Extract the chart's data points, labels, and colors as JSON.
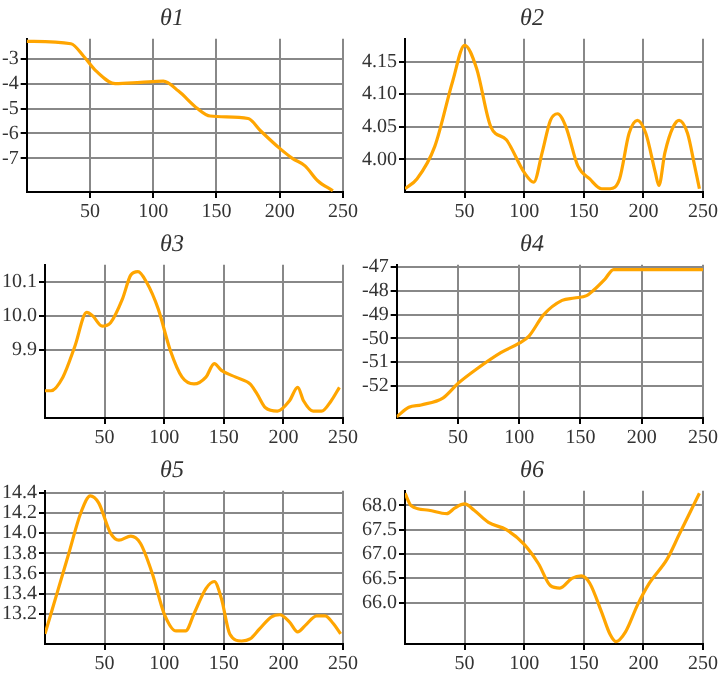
{
  "chart_data": [
    {
      "type": "line",
      "title": "θ1",
      "color": "#ffa500",
      "grid": true,
      "xlim": [
        0,
        250
      ],
      "xticks": [
        50,
        100,
        150,
        200,
        250
      ],
      "ylim": [
        -8.35,
        -2.2
      ],
      "yticks": [
        -7,
        -6,
        -5,
        -4,
        -3
      ],
      "x": [
        0,
        35,
        45,
        55,
        70,
        90,
        108,
        120,
        135,
        145,
        175,
        185,
        200,
        210,
        220,
        230,
        242
      ],
      "values": [
        -2.3,
        -2.4,
        -2.9,
        -3.5,
        -4.0,
        -3.95,
        -3.9,
        -4.3,
        -5.0,
        -5.3,
        -5.4,
        -5.9,
        -6.6,
        -7.0,
        -7.3,
        -7.9,
        -8.3
      ]
    },
    {
      "type": "line",
      "title": "θ2",
      "color": "#ffa500",
      "grid": true,
      "xlim": [
        0,
        250
      ],
      "xticks": [
        50,
        100,
        150,
        200,
        250
      ],
      "ylim": [
        3.95,
        4.185
      ],
      "yticks": [
        {
          "value": 4.0,
          "label": "4.00"
        },
        {
          "value": 4.05,
          "label": "4.05"
        },
        {
          "value": 4.1,
          "label": "4.10"
        },
        {
          "value": 4.15,
          "label": "4.15"
        }
      ],
      "x": [
        0,
        10,
        25,
        40,
        50,
        60,
        72,
        85,
        100,
        108,
        115,
        122,
        128,
        135,
        145,
        155,
        165,
        172,
        180,
        188,
        195,
        202,
        210,
        213,
        218,
        225,
        230,
        237,
        243,
        247
      ],
      "values": [
        3.955,
        3.97,
        4.02,
        4.12,
        4.175,
        4.14,
        4.05,
        4.03,
        3.98,
        3.965,
        4.01,
        4.06,
        4.07,
        4.05,
        3.99,
        3.97,
        3.955,
        3.955,
        3.97,
        4.04,
        4.06,
        4.04,
        3.98,
        3.96,
        4.01,
        4.05,
        4.06,
        4.04,
        3.99,
        3.955
      ]
    },
    {
      "type": "line",
      "title": "θ3",
      "color": "#ffa500",
      "grid": true,
      "xlim": [
        0,
        250
      ],
      "xticks": [
        50,
        100,
        150,
        200,
        250
      ],
      "ylim": [
        9.7,
        10.15
      ],
      "yticks": [
        9.9,
        {
          "value": 10.0,
          "label": "10.0"
        },
        10.1
      ],
      "x": [
        0,
        5,
        15,
        25,
        35,
        40,
        48,
        55,
        65,
        72,
        78,
        85,
        95,
        105,
        115,
        125,
        135,
        142,
        148,
        160,
        172,
        178,
        185,
        195,
        205,
        212,
        217,
        225,
        232,
        240,
        247
      ],
      "values": [
        9.78,
        9.78,
        9.82,
        9.91,
        10.01,
        10.0,
        9.97,
        9.98,
        10.05,
        10.12,
        10.13,
        10.1,
        10.02,
        9.9,
        9.82,
        9.8,
        9.82,
        9.86,
        9.84,
        9.82,
        9.8,
        9.77,
        9.73,
        9.72,
        9.75,
        9.79,
        9.75,
        9.72,
        9.72,
        9.75,
        9.79
      ]
    },
    {
      "type": "line",
      "title": "θ4",
      "color": "#ffa500",
      "grid": true,
      "xlim": [
        0,
        250
      ],
      "xticks": [
        50,
        100,
        150,
        200,
        250
      ],
      "ylim": [
        -53.35,
        -46.9
      ],
      "yticks": [
        -52,
        -51,
        -50,
        -49,
        -48,
        -47
      ],
      "x": [
        0,
        10,
        20,
        38,
        50,
        65,
        85,
        100,
        108,
        120,
        135,
        145,
        155,
        160,
        170,
        177,
        250
      ],
      "values": [
        -53.3,
        -52.9,
        -52.8,
        -52.5,
        -51.9,
        -51.3,
        -50.6,
        -50.2,
        -49.9,
        -49.0,
        -48.4,
        -48.3,
        -48.2,
        -48.0,
        -47.5,
        -47.1,
        -47.1
      ]
    },
    {
      "type": "line",
      "title": "θ5",
      "color": "#ffa500",
      "grid": true,
      "xlim": [
        0,
        250
      ],
      "xticks": [
        50,
        100,
        150,
        200,
        250
      ],
      "ylim": [
        12.9,
        14.42
      ],
      "yticks": [
        13.2,
        13.4,
        13.6,
        13.8,
        {
          "value": 14.0,
          "label": "14.0"
        },
        14.2,
        14.4
      ],
      "x": [
        0,
        10,
        20,
        30,
        38,
        45,
        55,
        62,
        72,
        80,
        90,
        100,
        110,
        118,
        125,
        135,
        142,
        148,
        155,
        165,
        172,
        180,
        190,
        197,
        205,
        212,
        218,
        228,
        235,
        242,
        248
      ],
      "values": [
        13.0,
        13.4,
        13.8,
        14.2,
        14.37,
        14.3,
        14.0,
        13.93,
        13.97,
        13.9,
        13.6,
        13.2,
        13.03,
        13.03,
        13.2,
        13.45,
        13.52,
        13.35,
        13.0,
        12.93,
        12.95,
        13.05,
        13.17,
        13.19,
        13.12,
        13.02,
        13.08,
        13.18,
        13.18,
        13.1,
        13.0
      ]
    },
    {
      "type": "line",
      "title": "θ6",
      "color": "#ffa500",
      "grid": true,
      "xlim": [
        0,
        250
      ],
      "xticks": [
        50,
        100,
        150,
        200,
        250
      ],
      "ylim": [
        65.15,
        68.3
      ],
      "yticks": [
        {
          "value": 66.0,
          "label": "66.0"
        },
        66.5,
        {
          "value": 67.0,
          "label": "67.0"
        },
        67.5,
        {
          "value": 68.0,
          "label": "68.0"
        }
      ],
      "x": [
        0,
        5,
        20,
        35,
        42,
        50,
        58,
        70,
        85,
        100,
        112,
        122,
        130,
        140,
        148,
        155,
        165,
        172,
        177,
        185,
        195,
        205,
        220,
        230,
        240,
        247
      ],
      "values": [
        68.25,
        68.0,
        67.9,
        67.83,
        67.95,
        68.03,
        67.9,
        67.65,
        67.5,
        67.2,
        66.8,
        66.35,
        66.3,
        66.5,
        66.55,
        66.4,
        65.8,
        65.35,
        65.2,
        65.4,
        65.95,
        66.4,
        66.9,
        67.4,
        67.9,
        68.25
      ]
    }
  ]
}
